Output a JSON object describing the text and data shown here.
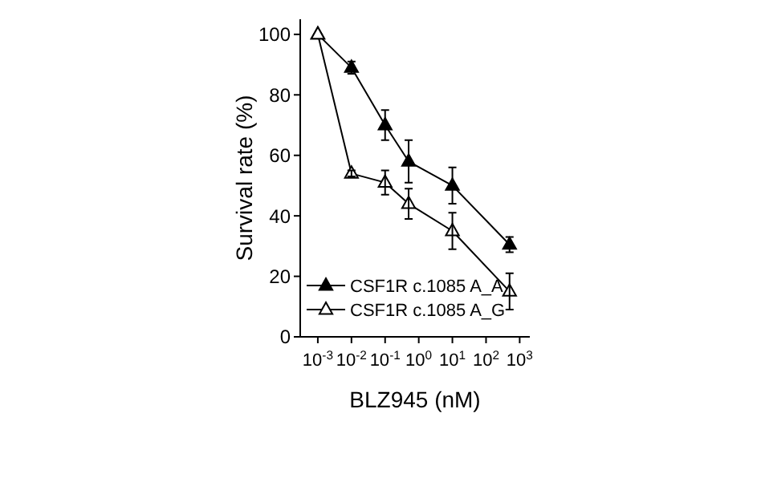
{
  "chart_data": {
    "type": "line",
    "xlabel": "BLZ945 (nM)",
    "ylabel": "Survival rate (%)",
    "log": "x",
    "xlim": [
      0.0003,
      2000
    ],
    "ylim": [
      0,
      105
    ],
    "xticks": [
      {
        "value": 0.001,
        "label": "10$^{-3}$"
      },
      {
        "value": 0.01,
        "label": "10$^{-2}$"
      },
      {
        "value": 0.1,
        "label": "10$^{-1}$"
      },
      {
        "value": 1,
        "label": "10$^{0}$"
      },
      {
        "value": 10,
        "label": "10$^{1}$"
      },
      {
        "value": 100,
        "label": "10$^{2}$"
      },
      {
        "value": 1000,
        "label": "10$^{3}$"
      }
    ],
    "yticks": [
      0,
      20,
      40,
      60,
      80,
      100
    ],
    "x": [
      0.001,
      0.01,
      0.1,
      0.5,
      10,
      500
    ],
    "series": [
      {
        "name": "CSF1R c.1085 A_A",
        "color": "#000000",
        "marker": "triangle",
        "values": [
          100,
          89,
          70,
          58,
          50,
          30.5
        ],
        "errors": [
          null,
          2,
          5,
          7,
          6,
          2.5
        ]
      },
      {
        "name": "CSF1R c.1085 A_G",
        "color": "#000000",
        "marker": "triangle",
        "values": [
          100,
          54,
          51,
          44,
          35,
          15
        ],
        "errors": [
          null,
          1,
          4,
          5,
          6,
          6
        ]
      }
    ],
    "legend": "bottom left",
    "grid": false,
    "line_style": "solid"
  }
}
